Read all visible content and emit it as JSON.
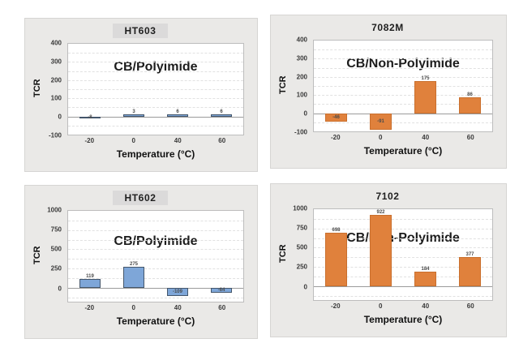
{
  "colors": {
    "page_bg": "#FFFFFF",
    "panel_bg": "#EAE9E7",
    "panel_border": "#D6D5D3",
    "title_box_bg": "#DBDADA",
    "plot_bg": "#FFFFFF",
    "plot_border": "#BDBDBD",
    "gridline": "#E1E1E1",
    "zero_line": "#9B9B9B",
    "blue_fill": "#7EA6D8",
    "blue_border": "#44566B",
    "orange_fill": "#E0813C",
    "orange_border": "#C96F2D"
  },
  "chart_data": [
    {
      "type": "bar",
      "title": "HT603",
      "annotation": "CB/Polyimide",
      "annotation_top_pct": 18,
      "xlabel": "Temperature (°C)",
      "ylabel": "TCR",
      "categories": [
        "-20",
        "0",
        "40",
        "60"
      ],
      "values": [
        -8,
        3,
        6,
        6
      ],
      "labels": [
        "-8",
        "3",
        "6",
        "6"
      ],
      "ylim": [
        -100,
        400
      ],
      "yticks": [
        400,
        300,
        200,
        100,
        0,
        -100
      ],
      "grid_step": 50,
      "grid": true,
      "legend": false,
      "bar_width_pct": 12,
      "bar_fill": "#7EA6D8",
      "bar_border": "#44566B"
    },
    {
      "type": "bar",
      "title": "7082M",
      "annotation": "CB/Non-Polyimide",
      "annotation_top_pct": 18,
      "xlabel": "Temperature (°C)",
      "ylabel": "TCR",
      "categories": [
        "-20",
        "0",
        "40",
        "60"
      ],
      "values": [
        -46,
        -91,
        175,
        86
      ],
      "labels": [
        "-46",
        "-91",
        "175",
        "86"
      ],
      "ylim": [
        -100,
        400
      ],
      "yticks": [
        400,
        300,
        200,
        100,
        0,
        -100
      ],
      "grid_step": 50,
      "grid": true,
      "legend": false,
      "bar_width_pct": 12,
      "bar_fill": "#E0813C",
      "bar_border": "#C96F2D"
    },
    {
      "type": "bar",
      "title": "HT602",
      "annotation": "CB/Polyimide",
      "annotation_top_pct": 26,
      "xlabel": "Temperature (°C)",
      "ylabel": "TCR",
      "categories": [
        "-20",
        "0",
        "40",
        "60"
      ],
      "values": [
        119,
        275,
        -109,
        -64
      ],
      "labels": [
        "119",
        "275",
        "-109",
        "-64"
      ],
      "ylim": [
        -180,
        1000
      ],
      "yticks": [
        1000,
        750,
        500,
        250,
        0
      ],
      "grid_step": 125,
      "grid": true,
      "legend": false,
      "bar_width_pct": 12,
      "bar_fill": "#7EA6D8",
      "bar_border": "#44566B"
    },
    {
      "type": "bar",
      "title": "7102",
      "annotation": "CB/Non-Polyimide",
      "annotation_top_pct": 24,
      "xlabel": "Temperature (°C)",
      "ylabel": "TCR",
      "categories": [
        "-20",
        "0",
        "40",
        "60"
      ],
      "values": [
        698,
        922,
        184,
        377
      ],
      "labels": [
        "698",
        "922",
        "184",
        "377"
      ],
      "ylim": [
        -180,
        1000
      ],
      "yticks": [
        1000,
        750,
        500,
        250,
        0
      ],
      "grid_step": 125,
      "grid": true,
      "legend": false,
      "bar_width_pct": 12,
      "bar_fill": "#E0813C",
      "bar_border": "#C96F2D"
    }
  ]
}
